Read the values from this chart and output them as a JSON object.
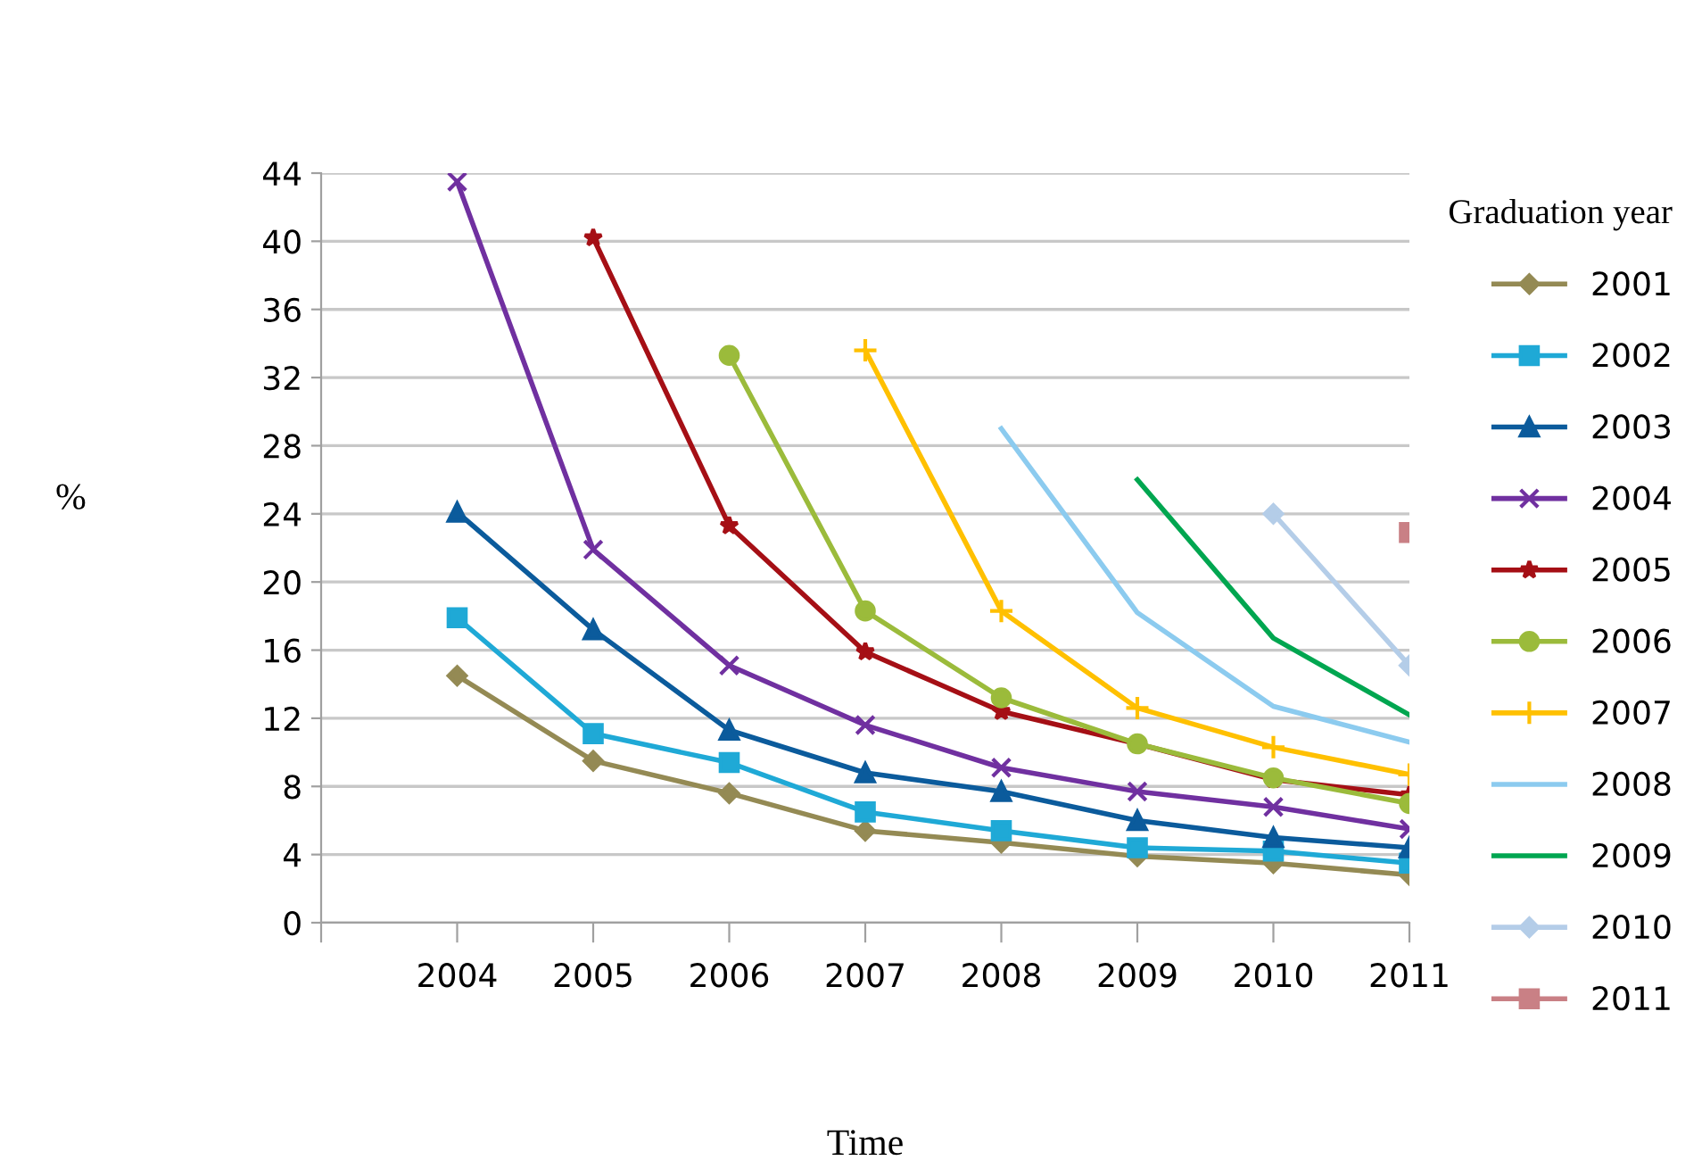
{
  "chart_data": {
    "type": "line",
    "xlabel": "Time",
    "ylabel": "%",
    "legend_title": "Graduation year",
    "categories": [
      null,
      "2004",
      "2005",
      "2006",
      "2007",
      "2008",
      "2009",
      "2010",
      "2011"
    ],
    "ylim": [
      0,
      44
    ],
    "yticks": [
      0,
      4,
      8,
      12,
      16,
      20,
      24,
      28,
      32,
      36,
      40,
      44
    ],
    "grid": "y",
    "legend": "right",
    "series": [
      {
        "name": "2001",
        "color": "#948a54",
        "marker": "diamond",
        "values": [
          null,
          14.5,
          9.5,
          7.6,
          5.4,
          4.7,
          3.9,
          3.5,
          2.8
        ]
      },
      {
        "name": "2002",
        "color": "#1fa9d6",
        "marker": "square",
        "values": [
          null,
          17.9,
          11.1,
          9.4,
          6.5,
          5.4,
          4.4,
          4.2,
          3.5
        ]
      },
      {
        "name": "2003",
        "color": "#0b5b9c",
        "marker": "triangle",
        "values": [
          null,
          24.1,
          17.2,
          11.3,
          8.8,
          7.7,
          6.0,
          5.0,
          4.4
        ]
      },
      {
        "name": "2004",
        "color": "#7030a0",
        "marker": "cross",
        "values": [
          null,
          43.5,
          21.9,
          15.1,
          11.6,
          9.1,
          7.7,
          6.8,
          5.5
        ]
      },
      {
        "name": "2005",
        "color": "#a50f15",
        "marker": "star",
        "values": [
          null,
          null,
          40.2,
          23.3,
          15.9,
          12.4,
          10.5,
          8.4,
          7.5
        ]
      },
      {
        "name": "2006",
        "color": "#9bbb3b",
        "marker": "circle",
        "values": [
          null,
          null,
          null,
          33.3,
          18.3,
          13.2,
          10.5,
          8.5,
          7.0
        ]
      },
      {
        "name": "2007",
        "color": "#ffc000",
        "marker": "plus",
        "values": [
          null,
          null,
          null,
          null,
          33.6,
          18.3,
          12.6,
          10.3,
          8.7
        ]
      },
      {
        "name": "2008",
        "color": "#8ccbef",
        "marker": "none",
        "values": [
          null,
          null,
          null,
          null,
          null,
          29.0,
          18.2,
          12.7,
          10.6
        ]
      },
      {
        "name": "2009",
        "color": "#00a650",
        "marker": "none",
        "values": [
          null,
          null,
          null,
          null,
          null,
          null,
          26.0,
          16.7,
          12.2
        ]
      },
      {
        "name": "2010",
        "color": "#b4cde8",
        "marker": "diamond",
        "values": [
          null,
          null,
          null,
          null,
          null,
          null,
          null,
          24.0,
          15.1
        ]
      },
      {
        "name": "2011",
        "color": "#c98085",
        "marker": "square",
        "values": [
          null,
          null,
          null,
          null,
          null,
          null,
          null,
          null,
          22.9
        ]
      }
    ]
  }
}
